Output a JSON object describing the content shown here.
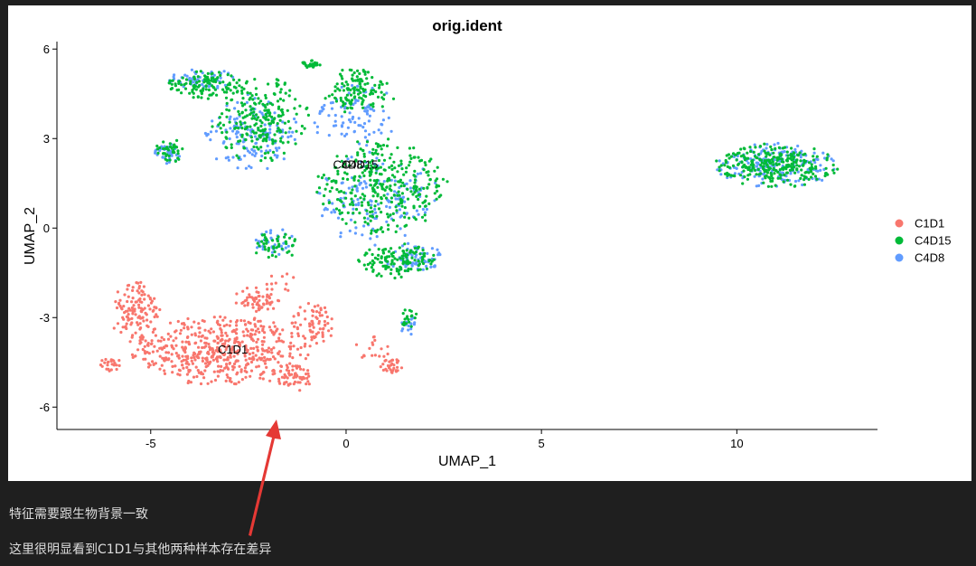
{
  "notes": {
    "line1": "特征需要跟生物背景一致",
    "line2": "这里很明显看到C1D1与其他两种样本存在差异"
  },
  "chart_data": {
    "type": "scatter",
    "title": "orig.ident",
    "xlabel": "UMAP_1",
    "ylabel": "UMAP_2",
    "xlim": [
      -7.4,
      13.6
    ],
    "ylim": [
      -6.75,
      6.25
    ],
    "xticks": [
      -5,
      0,
      5,
      10
    ],
    "xtick_labels": [
      "-5",
      "0",
      "5",
      "10"
    ],
    "yticks": [
      -6,
      -3,
      0,
      3,
      6
    ],
    "ytick_labels": [
      "-6",
      "-3",
      "0",
      "3",
      "6"
    ],
    "grid": false,
    "legend_position": "right",
    "series": [
      {
        "name": "C1D1",
        "color": "#F8766D",
        "regions": [
          {
            "cx": -3.2,
            "cy": -4.1,
            "rx": 2.3,
            "ry": 1.2,
            "n": 520
          },
          {
            "cx": -5.4,
            "cy": -2.8,
            "rx": 0.7,
            "ry": 1.1,
            "n": 120
          },
          {
            "cx": -6.0,
            "cy": -4.6,
            "rx": 0.35,
            "ry": 0.25,
            "n": 25
          },
          {
            "cx": -2.3,
            "cy": -2.4,
            "rx": 0.6,
            "ry": 0.45,
            "n": 60
          },
          {
            "cx": -0.8,
            "cy": -3.2,
            "rx": 0.6,
            "ry": 0.7,
            "n": 70
          },
          {
            "cx": -1.4,
            "cy": -5.0,
            "rx": 0.6,
            "ry": 0.5,
            "n": 60
          },
          {
            "cx": 1.2,
            "cy": -4.6,
            "rx": 0.35,
            "ry": 0.25,
            "n": 30
          },
          {
            "cx": 0.7,
            "cy": -4.1,
            "rx": 0.5,
            "ry": 0.5,
            "n": 18
          },
          {
            "cx": -1.6,
            "cy": -1.9,
            "rx": 0.5,
            "ry": 0.4,
            "n": 12
          }
        ]
      },
      {
        "name": "C4D15",
        "color": "#00BA38",
        "regions": [
          {
            "cx": -3.6,
            "cy": 4.8,
            "rx": 1.0,
            "ry": 0.5,
            "n": 110
          },
          {
            "cx": -2.2,
            "cy": 3.6,
            "rx": 1.3,
            "ry": 1.5,
            "n": 230
          },
          {
            "cx": -4.5,
            "cy": 2.6,
            "rx": 0.4,
            "ry": 0.4,
            "n": 40
          },
          {
            "cx": 0.3,
            "cy": 4.6,
            "rx": 1.0,
            "ry": 0.8,
            "n": 120
          },
          {
            "cx": -0.9,
            "cy": 5.5,
            "rx": 0.35,
            "ry": 0.12,
            "n": 25
          },
          {
            "cx": 0.9,
            "cy": 1.4,
            "rx": 1.7,
            "ry": 1.6,
            "n": 330
          },
          {
            "cx": 1.3,
            "cy": -1.1,
            "rx": 1.0,
            "ry": 0.6,
            "n": 130
          },
          {
            "cx": -1.8,
            "cy": -0.6,
            "rx": 0.6,
            "ry": 0.5,
            "n": 45
          },
          {
            "cx": 1.6,
            "cy": -3.1,
            "rx": 0.25,
            "ry": 0.4,
            "n": 20
          },
          {
            "cx": 11.0,
            "cy": 2.1,
            "rx": 1.6,
            "ry": 0.75,
            "n": 280
          }
        ]
      },
      {
        "name": "C4D8",
        "color": "#619CFF",
        "regions": [
          {
            "cx": -3.7,
            "cy": 5.0,
            "rx": 0.9,
            "ry": 0.35,
            "n": 60
          },
          {
            "cx": -2.4,
            "cy": 3.2,
            "rx": 1.2,
            "ry": 1.4,
            "n": 140
          },
          {
            "cx": -4.6,
            "cy": 2.5,
            "rx": 0.4,
            "ry": 0.35,
            "n": 30
          },
          {
            "cx": 0.2,
            "cy": 3.8,
            "rx": 1.1,
            "ry": 1.2,
            "n": 90
          },
          {
            "cx": 0.8,
            "cy": 1.0,
            "rx": 1.6,
            "ry": 1.6,
            "n": 150
          },
          {
            "cx": 1.7,
            "cy": -1.0,
            "rx": 0.8,
            "ry": 0.5,
            "n": 70
          },
          {
            "cx": -1.9,
            "cy": -0.5,
            "rx": 0.6,
            "ry": 0.5,
            "n": 40
          },
          {
            "cx": 1.6,
            "cy": -3.3,
            "rx": 0.25,
            "ry": 0.4,
            "n": 15
          },
          {
            "cx": 11.0,
            "cy": 2.1,
            "rx": 1.6,
            "ry": 0.75,
            "n": 200
          }
        ]
      }
    ],
    "cluster_labels": [
      {
        "text": "C1D1",
        "x": -2.9,
        "y": -4.1
      },
      {
        "text": "C4D8",
        "x": 0.05,
        "y": 2.1
      },
      {
        "text": "C4D15",
        "x": 0.35,
        "y": 2.1
      }
    ],
    "annotation_arrow": {
      "color": "#e53935"
    }
  }
}
